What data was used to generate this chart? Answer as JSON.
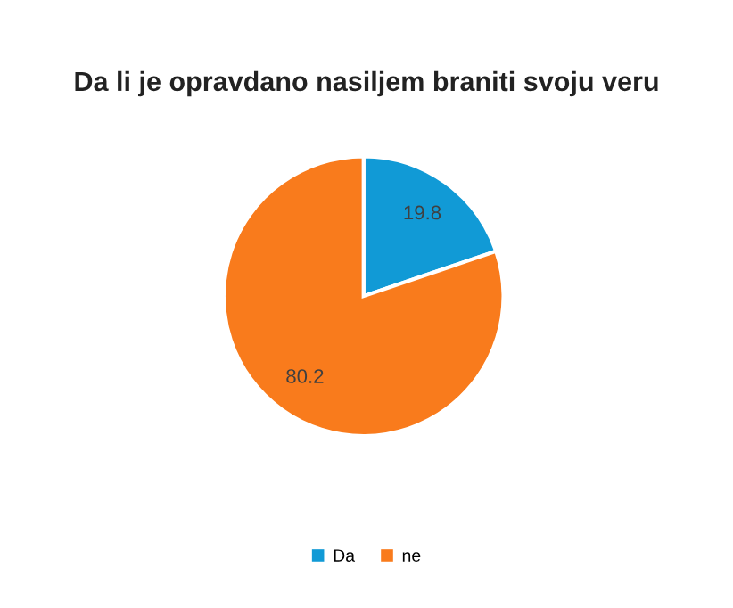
{
  "chart_data": {
    "type": "pie",
    "title": "Da li je opravdano nasiljem braniti svoju veru",
    "categories": [
      "Da",
      "ne"
    ],
    "values": [
      19.8,
      80.2
    ],
    "colors": [
      "#119ad6",
      "#f97b1c"
    ],
    "data_labels": true,
    "legend": "bottom"
  }
}
